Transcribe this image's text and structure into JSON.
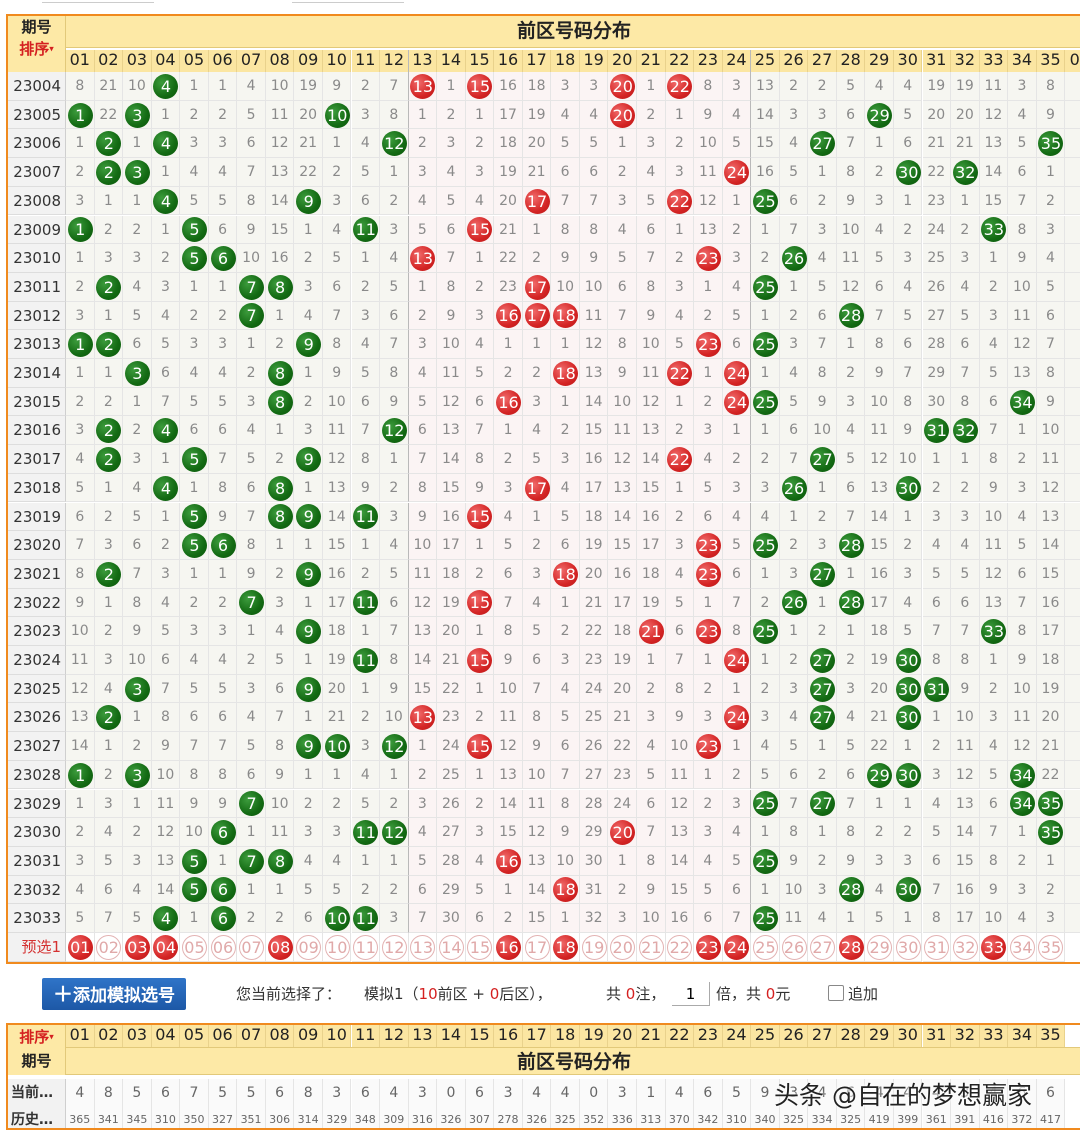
{
  "top_section": {
    "issue_label": "期号",
    "sort_label": "排序",
    "title": "前区号码分布",
    "columns": [
      "01",
      "02",
      "03",
      "04",
      "05",
      "06",
      "07",
      "08",
      "09",
      "10",
      "11",
      "12",
      "13",
      "14",
      "15",
      "16",
      "17",
      "18",
      "19",
      "20",
      "21",
      "22",
      "23",
      "24",
      "25",
      "26",
      "27",
      "28",
      "29",
      "30",
      "31",
      "32",
      "33",
      "34",
      "35"
    ],
    "partial_column": "0",
    "rows": [
      {
        "issue": "23004",
        "v": [
          8,
          21,
          10,
          "4",
          1,
          1,
          4,
          10,
          19,
          9,
          2,
          7,
          "13",
          1,
          "15",
          16,
          18,
          3,
          3,
          "20",
          1,
          "22",
          8,
          3,
          13,
          2,
          2,
          5,
          4,
          4,
          19,
          19,
          11,
          3,
          8
        ]
      },
      {
        "issue": "23005",
        "v": [
          "1",
          22,
          "3",
          1,
          2,
          2,
          5,
          11,
          20,
          "10",
          3,
          8,
          1,
          2,
          1,
          17,
          19,
          4,
          4,
          "20",
          2,
          1,
          9,
          4,
          14,
          3,
          3,
          6,
          "29",
          5,
          20,
          20,
          12,
          4,
          9
        ]
      },
      {
        "issue": "23006",
        "v": [
          1,
          "2",
          1,
          "4",
          3,
          3,
          6,
          12,
          21,
          1,
          4,
          "12",
          2,
          3,
          2,
          18,
          20,
          5,
          5,
          1,
          3,
          2,
          10,
          5,
          15,
          4,
          "27",
          7,
          1,
          6,
          21,
          21,
          13,
          5,
          "35"
        ]
      },
      {
        "issue": "23007",
        "v": [
          2,
          "2",
          "3",
          1,
          4,
          4,
          7,
          13,
          22,
          2,
          5,
          1,
          3,
          4,
          3,
          19,
          21,
          6,
          6,
          2,
          4,
          3,
          11,
          "24",
          16,
          5,
          1,
          8,
          2,
          "30",
          22,
          "32",
          14,
          6,
          1
        ]
      },
      {
        "issue": "23008",
        "v": [
          3,
          1,
          1,
          "4",
          5,
          5,
          8,
          14,
          "9",
          3,
          6,
          2,
          4,
          5,
          4,
          20,
          "17",
          7,
          7,
          3,
          5,
          "22",
          12,
          1,
          "25",
          6,
          2,
          9,
          3,
          1,
          23,
          1,
          15,
          7,
          2
        ]
      },
      {
        "issue": "23009",
        "v": [
          "1",
          2,
          2,
          1,
          "5",
          6,
          9,
          15,
          1,
          4,
          "11",
          3,
          5,
          6,
          "15",
          21,
          1,
          8,
          8,
          4,
          6,
          1,
          13,
          2,
          1,
          7,
          3,
          10,
          4,
          2,
          24,
          2,
          "33",
          8,
          3
        ]
      },
      {
        "issue": "23010",
        "v": [
          1,
          3,
          3,
          2,
          "5",
          "6",
          10,
          16,
          2,
          5,
          1,
          4,
          "13",
          7,
          1,
          22,
          2,
          9,
          9,
          5,
          7,
          2,
          "23",
          3,
          2,
          "26",
          4,
          11,
          5,
          3,
          25,
          3,
          1,
          9,
          4
        ]
      },
      {
        "issue": "23011",
        "v": [
          2,
          "2",
          4,
          3,
          1,
          1,
          "7",
          "8",
          3,
          6,
          2,
          5,
          1,
          8,
          2,
          23,
          "17",
          10,
          10,
          6,
          8,
          3,
          1,
          4,
          "25",
          1,
          5,
          12,
          6,
          4,
          26,
          4,
          2,
          10,
          5
        ]
      },
      {
        "issue": "23012",
        "v": [
          3,
          1,
          5,
          4,
          2,
          2,
          "7",
          1,
          4,
          7,
          3,
          6,
          2,
          9,
          3,
          "16",
          "17",
          "18",
          11,
          7,
          9,
          4,
          2,
          5,
          1,
          2,
          6,
          "28",
          7,
          5,
          27,
          5,
          3,
          11,
          6
        ]
      },
      {
        "issue": "23013",
        "v": [
          "1",
          "2",
          6,
          5,
          3,
          3,
          1,
          2,
          "9",
          8,
          4,
          7,
          3,
          10,
          4,
          1,
          1,
          1,
          12,
          8,
          10,
          5,
          "23",
          6,
          "25",
          3,
          7,
          1,
          8,
          6,
          28,
          6,
          4,
          12,
          7
        ]
      },
      {
        "issue": "23014",
        "v": [
          1,
          1,
          "3",
          6,
          4,
          4,
          2,
          "8",
          1,
          9,
          5,
          8,
          4,
          11,
          5,
          2,
          2,
          "18",
          13,
          9,
          11,
          "22",
          1,
          "24",
          1,
          4,
          8,
          2,
          9,
          7,
          29,
          7,
          5,
          13,
          8
        ]
      },
      {
        "issue": "23015",
        "v": [
          2,
          2,
          1,
          7,
          5,
          5,
          3,
          "8",
          2,
          10,
          6,
          9,
          5,
          12,
          6,
          "16",
          3,
          1,
          14,
          10,
          12,
          1,
          2,
          "24",
          "25",
          5,
          9,
          3,
          10,
          8,
          30,
          8,
          6,
          "34",
          9
        ]
      },
      {
        "issue": "23016",
        "v": [
          3,
          "2",
          2,
          "4",
          6,
          6,
          4,
          1,
          3,
          11,
          7,
          "12",
          6,
          13,
          7,
          1,
          4,
          2,
          15,
          11,
          13,
          2,
          3,
          1,
          1,
          6,
          10,
          4,
          11,
          9,
          "31",
          "32",
          7,
          1,
          10
        ]
      },
      {
        "issue": "23017",
        "v": [
          4,
          "2",
          3,
          1,
          "5",
          7,
          5,
          2,
          "9",
          12,
          8,
          1,
          7,
          14,
          8,
          2,
          5,
          3,
          16,
          12,
          14,
          "22",
          4,
          2,
          2,
          7,
          "27",
          5,
          12,
          10,
          1,
          1,
          8,
          2,
          11
        ]
      },
      {
        "issue": "23018",
        "v": [
          5,
          1,
          4,
          "4",
          1,
          8,
          6,
          "8",
          1,
          13,
          9,
          2,
          8,
          15,
          9,
          3,
          "17",
          4,
          17,
          13,
          15,
          1,
          5,
          3,
          3,
          "26",
          1,
          6,
          13,
          "30",
          2,
          2,
          9,
          3,
          12
        ]
      },
      {
        "issue": "23019",
        "v": [
          6,
          2,
          5,
          1,
          "5",
          9,
          7,
          "8",
          "9",
          14,
          "11",
          3,
          9,
          16,
          "15",
          4,
          1,
          5,
          18,
          14,
          16,
          2,
          6,
          4,
          4,
          1,
          2,
          7,
          14,
          1,
          3,
          3,
          10,
          4,
          13
        ]
      },
      {
        "issue": "23020",
        "v": [
          7,
          3,
          6,
          2,
          "5",
          "6",
          8,
          1,
          1,
          15,
          1,
          4,
          10,
          17,
          1,
          5,
          2,
          6,
          19,
          15,
          17,
          3,
          "23",
          5,
          "25",
          2,
          3,
          "28",
          15,
          2,
          4,
          4,
          11,
          5,
          14
        ]
      },
      {
        "issue": "23021",
        "v": [
          8,
          "2",
          7,
          3,
          1,
          1,
          9,
          2,
          "9",
          16,
          2,
          5,
          11,
          18,
          2,
          6,
          3,
          "18",
          20,
          16,
          18,
          4,
          "23",
          6,
          1,
          3,
          "27",
          1,
          16,
          3,
          5,
          5,
          12,
          6,
          15
        ]
      },
      {
        "issue": "23022",
        "v": [
          9,
          1,
          8,
          4,
          2,
          2,
          "7",
          3,
          1,
          17,
          "11",
          6,
          12,
          19,
          "15",
          7,
          4,
          1,
          21,
          17,
          19,
          5,
          1,
          7,
          2,
          "26",
          1,
          "28",
          17,
          4,
          6,
          6,
          13,
          7,
          16
        ]
      },
      {
        "issue": "23023",
        "v": [
          10,
          2,
          9,
          5,
          3,
          3,
          1,
          4,
          "9",
          18,
          1,
          7,
          13,
          20,
          1,
          8,
          5,
          2,
          22,
          18,
          "21",
          6,
          "23",
          8,
          "25",
          1,
          2,
          1,
          18,
          5,
          7,
          7,
          "33",
          8,
          17
        ]
      },
      {
        "issue": "23024",
        "v": [
          11,
          3,
          10,
          6,
          4,
          4,
          2,
          5,
          1,
          19,
          "11",
          8,
          14,
          21,
          "15",
          9,
          6,
          3,
          23,
          19,
          1,
          7,
          1,
          "24",
          1,
          2,
          "27",
          2,
          19,
          "30",
          8,
          8,
          1,
          9,
          18
        ]
      },
      {
        "issue": "23025",
        "v": [
          12,
          4,
          "3",
          7,
          5,
          5,
          3,
          6,
          "9",
          20,
          1,
          9,
          15,
          22,
          1,
          10,
          7,
          4,
          24,
          20,
          2,
          8,
          2,
          1,
          2,
          3,
          "27",
          3,
          20,
          "30",
          "31",
          9,
          2,
          10,
          19
        ]
      },
      {
        "issue": "23026",
        "v": [
          13,
          "2",
          1,
          8,
          6,
          6,
          4,
          7,
          1,
          21,
          2,
          10,
          "13",
          23,
          2,
          11,
          8,
          5,
          25,
          21,
          3,
          9,
          3,
          "24",
          3,
          4,
          "27",
          4,
          21,
          "30",
          1,
          10,
          3,
          11,
          20
        ]
      },
      {
        "issue": "23027",
        "v": [
          14,
          1,
          2,
          9,
          7,
          7,
          5,
          8,
          "9",
          "10",
          3,
          "12",
          1,
          24,
          "15",
          12,
          9,
          6,
          26,
          22,
          4,
          10,
          "23",
          1,
          4,
          5,
          1,
          5,
          22,
          1,
          2,
          11,
          4,
          12,
          21
        ]
      },
      {
        "issue": "23028",
        "v": [
          "1",
          2,
          "3",
          10,
          8,
          8,
          6,
          9,
          1,
          1,
          4,
          1,
          2,
          25,
          1,
          13,
          10,
          7,
          27,
          23,
          5,
          11,
          1,
          2,
          5,
          6,
          2,
          6,
          "29",
          "30",
          3,
          12,
          5,
          "34",
          22
        ]
      },
      {
        "issue": "23029",
        "v": [
          1,
          3,
          1,
          11,
          9,
          9,
          "7",
          10,
          2,
          2,
          5,
          2,
          3,
          26,
          2,
          14,
          11,
          8,
          28,
          24,
          6,
          12,
          2,
          3,
          "25",
          7,
          "27",
          7,
          1,
          1,
          4,
          13,
          6,
          "34",
          "35"
        ]
      },
      {
        "issue": "23030",
        "v": [
          2,
          4,
          2,
          12,
          10,
          "6",
          1,
          11,
          3,
          3,
          "11",
          "12",
          4,
          27,
          3,
          15,
          12,
          9,
          29,
          "20",
          7,
          13,
          3,
          4,
          1,
          8,
          1,
          8,
          2,
          2,
          5,
          14,
          7,
          1,
          "35"
        ]
      },
      {
        "issue": "23031",
        "v": [
          3,
          5,
          3,
          13,
          "5",
          1,
          "7",
          "8",
          4,
          4,
          1,
          1,
          5,
          28,
          4,
          "16",
          13,
          10,
          30,
          1,
          8,
          14,
          4,
          5,
          "25",
          9,
          2,
          9,
          3,
          3,
          6,
          15,
          8,
          2,
          1
        ]
      },
      {
        "issue": "23032",
        "v": [
          4,
          6,
          4,
          14,
          "5",
          "6",
          1,
          1,
          5,
          5,
          2,
          2,
          6,
          29,
          5,
          1,
          14,
          "18",
          31,
          2,
          9,
          15,
          5,
          6,
          1,
          10,
          3,
          "28",
          4,
          "30",
          7,
          16,
          9,
          3,
          2
        ]
      },
      {
        "issue": "23033",
        "v": [
          5,
          7,
          5,
          "4",
          1,
          "6",
          2,
          2,
          6,
          "10",
          "11",
          3,
          7,
          30,
          6,
          2,
          15,
          1,
          32,
          3,
          10,
          16,
          6,
          7,
          "25",
          11,
          4,
          1,
          5,
          1,
          8,
          17,
          10,
          4,
          3
        ]
      }
    ],
    "predict": {
      "label": "预选1",
      "selected": [
        1,
        3,
        4,
        8,
        16,
        18,
        23,
        24,
        28,
        33
      ]
    }
  },
  "action_bar": {
    "add_button": "添加模拟选号",
    "prefix": "您当前选择了：",
    "sim_name": "模拟1（",
    "front_count": "10",
    "front_label": "前区 + ",
    "back_count": "0",
    "back_label": "后区），",
    "total_prefix": "共 ",
    "bets": "0",
    "bets_unit": "注，",
    "multiplier": "1",
    "mult_unit": "倍，共 ",
    "amount": "0",
    "amount_unit": "元",
    "append_label": "追加"
  },
  "bottom_section": {
    "sort_label": "排序",
    "issue_label": "期号",
    "title": "前区号码分布",
    "current_label": "当前…",
    "history_label": "历史…",
    "current": [
      4,
      8,
      5,
      6,
      7,
      5,
      5,
      6,
      8,
      3,
      6,
      4,
      3,
      0,
      6,
      3,
      4,
      4,
      0,
      3,
      1,
      4,
      6,
      5,
      9,
      3,
      4,
      6,
      4,
      4,
      4,
      3,
      4,
      6,
      6
    ],
    "history": [
      365,
      341,
      345,
      310,
      350,
      327,
      351,
      306,
      314,
      329,
      348,
      309,
      316,
      326,
      307,
      278,
      326,
      325,
      352,
      336,
      313,
      370,
      342,
      310,
      340,
      325,
      334,
      325,
      419,
      399,
      361,
      391,
      416,
      372,
      417
    ]
  },
  "watermark": "头条 @自在的梦想赢家",
  "colors": {
    "hit_red": "#d42424",
    "hit_green": "#136a13",
    "header_bg": "#fde9a6",
    "border": "#f08a1e",
    "button": "#1d58a6"
  }
}
